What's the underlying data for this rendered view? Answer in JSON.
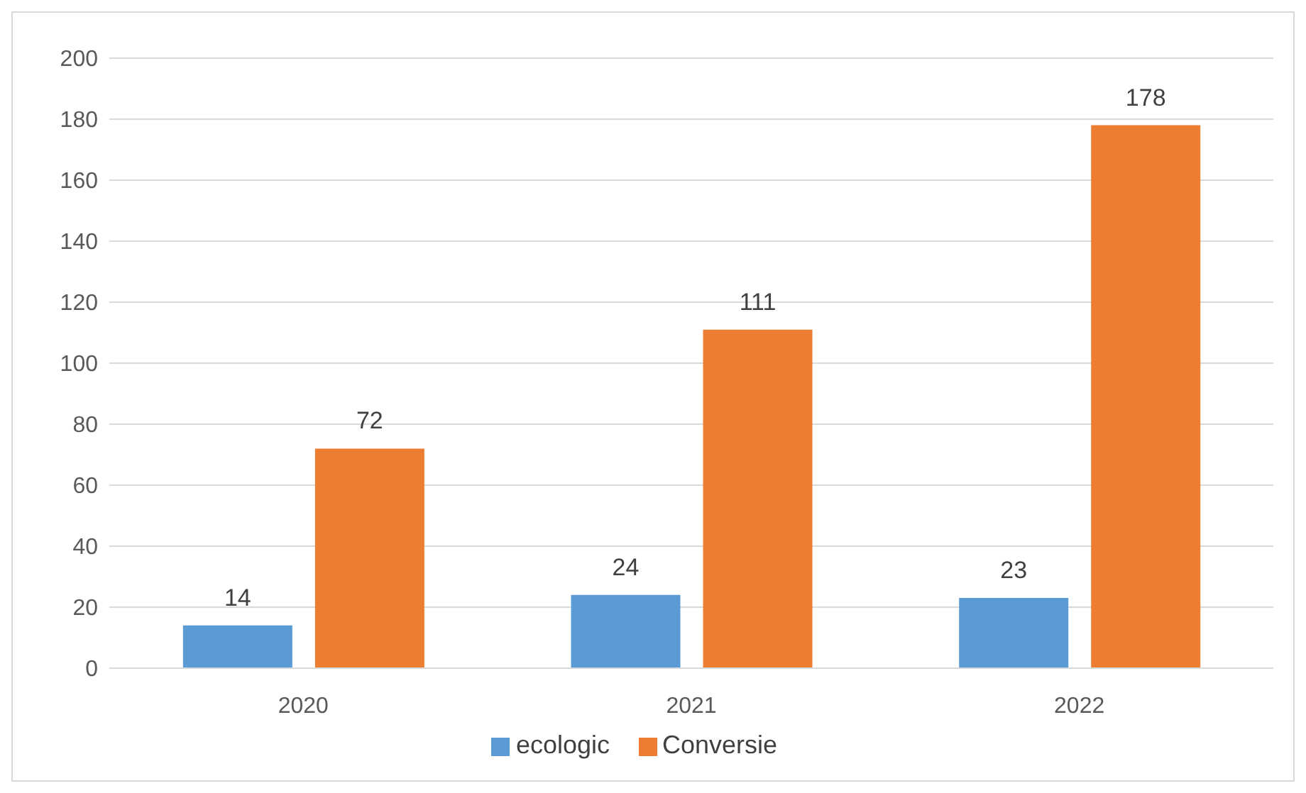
{
  "chart_data": {
    "type": "bar",
    "categories": [
      "2020",
      "2021",
      "2022"
    ],
    "series": [
      {
        "name": "ecologic",
        "color": "#5b9bd5",
        "values": [
          14,
          24,
          23
        ]
      },
      {
        "name": "Conversie",
        "color": "#ed7d31",
        "values": [
          72,
          111,
          178
        ]
      }
    ],
    "ylim": [
      0,
      200
    ],
    "yticks": [
      0,
      20,
      40,
      60,
      80,
      100,
      120,
      140,
      160,
      180,
      200
    ],
    "grid": "y",
    "legend": "bottom",
    "data_labels": true
  }
}
